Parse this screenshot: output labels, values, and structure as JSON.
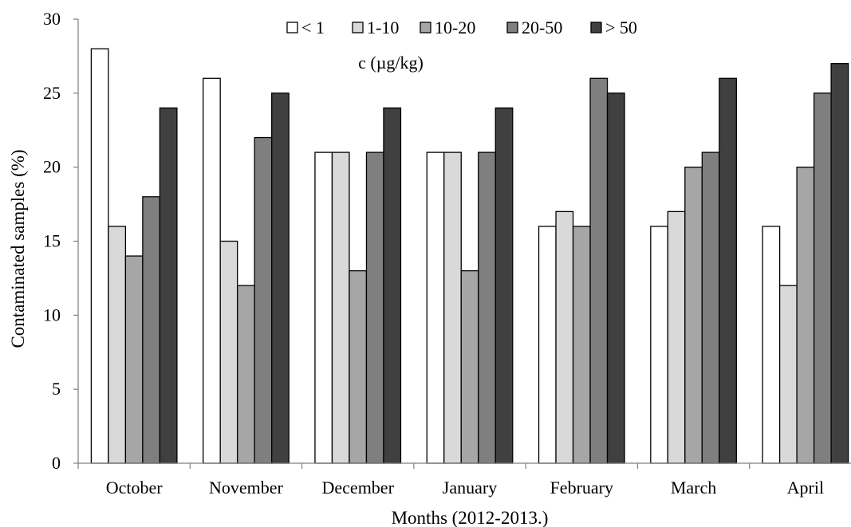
{
  "chart_data": {
    "type": "bar",
    "categories": [
      "October",
      "November",
      "December",
      "January",
      "February",
      "March",
      "April"
    ],
    "series": [
      {
        "name": "< 1",
        "color": "#ffffff",
        "values": [
          28,
          26,
          21,
          21,
          16,
          16,
          16
        ]
      },
      {
        "name": "1-10",
        "color": "#d9d9d9",
        "values": [
          16,
          15,
          21,
          21,
          17,
          17,
          12
        ]
      },
      {
        "name": "10-20",
        "color": "#a6a6a6",
        "values": [
          14,
          12,
          13,
          13,
          16,
          20,
          20
        ]
      },
      {
        "name": "20-50",
        "color": "#7f7f7f",
        "values": [
          18,
          22,
          21,
          21,
          26,
          21,
          25
        ]
      },
      {
        "name": "> 50",
        "color": "#404040",
        "values": [
          24,
          25,
          24,
          24,
          25,
          26,
          27
        ]
      }
    ],
    "xlabel": "Months (2012-2013.)",
    "ylabel": "Contaminated samples (%)",
    "legend_title": "c (µg/kg)",
    "legend_position": "top-center",
    "ylim": [
      0,
      30
    ],
    "yticks": [
      0,
      5,
      10,
      15,
      20,
      25,
      30
    ],
    "grid": false
  }
}
